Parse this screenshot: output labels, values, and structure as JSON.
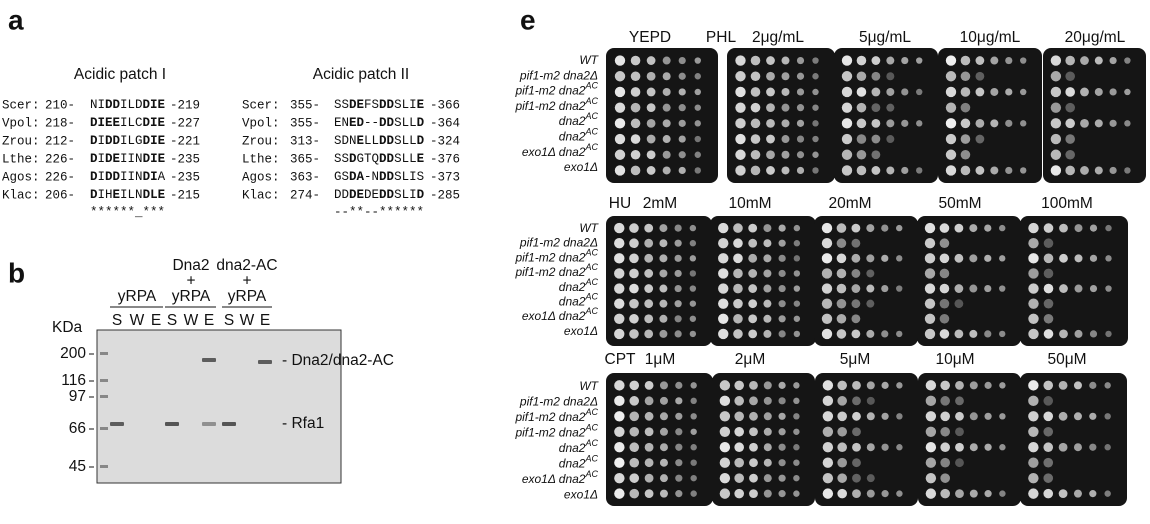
{
  "panel_a": {
    "label": "a",
    "patches": [
      {
        "title": "Acidic patch I",
        "rows": [
          {
            "species": "Scer:",
            "start": "210-",
            "seq": [
              "NI",
              "DD",
              "ILD",
              "DIE"
            ],
            "end": "-219"
          },
          {
            "species": "Vpol:",
            "start": "218-",
            "seq": [
              "",
              "DIEE",
              "ILC",
              "DIE"
            ],
            "end": "-227"
          },
          {
            "species": "Zrou:",
            "start": "212-",
            "seq": [
              "",
              "D",
              "I",
              "DD",
              "ILG",
              "DIE"
            ],
            "end": "-221"
          },
          {
            "species": "Lthe:",
            "start": "226-",
            "seq": [
              "",
              "D",
              "I",
              "DE",
              "IIN",
              "DIE"
            ],
            "end": "-235"
          },
          {
            "species": "Agos:",
            "start": "226-",
            "seq": [
              "",
              "D",
              "I",
              "DD",
              "IIN",
              "DI",
              "A"
            ],
            "end": "-235"
          },
          {
            "species": "Klac:",
            "start": "206-",
            "seq": [
              "",
              "D",
              "IH",
              "E",
              "ILN",
              "DLE"
            ],
            "end": "-215"
          }
        ],
        "consensus": "******_***"
      },
      {
        "title": "Acidic patch II",
        "rows": [
          {
            "species": "Scer:",
            "start": "355-",
            "seq": [
              "SS",
              "DE",
              "FS",
              "DD",
              "SLI",
              "E"
            ],
            "end": "-366"
          },
          {
            "species": "Vpol:",
            "start": "355-",
            "seq": [
              "EN",
              "ED",
              "--",
              "DD",
              "SLL",
              "D"
            ],
            "end": "-364"
          },
          {
            "species": "Zrou:",
            "start": "313-",
            "seq": [
              "SDN",
              "E",
              "LL",
              "DD",
              "SLL",
              "D"
            ],
            "end": "-324"
          },
          {
            "species": "Lthe:",
            "start": "365-",
            "seq": [
              "SS",
              "D",
              "GTQ",
              "DD",
              "SLL",
              "E"
            ],
            "end": "-376"
          },
          {
            "species": "Agos:",
            "start": "363-",
            "seq": [
              "GS",
              "DA",
              "-N",
              "DD",
              "SLIS"
            ],
            "end": "-373"
          },
          {
            "species": "Klac:",
            "start": "274-",
            "seq": [
              "DD",
              "DE",
              "DE",
              "DD",
              "SLI",
              "D"
            ],
            "end": "-285"
          }
        ],
        "consensus": "--**--******"
      }
    ]
  },
  "panel_b": {
    "label": "b",
    "unit": "KDa",
    "groups": [
      {
        "lines": [
          "yRPA"
        ],
        "lanes": [
          "S",
          "W",
          "E"
        ]
      },
      {
        "lines": [
          "Dna2",
          "+",
          "yRPA"
        ],
        "lanes": [
          "S",
          "W",
          "E"
        ]
      },
      {
        "lines": [
          "dna2-AC",
          "+",
          "yRPA"
        ],
        "lanes": [
          "S",
          "W",
          "E"
        ]
      }
    ],
    "markers": [
      "200",
      "116",
      "97",
      "66",
      "45"
    ],
    "band_labels": [
      "- Dna2/dna2-AC",
      "- Rfa1"
    ]
  },
  "panel_e": {
    "label": "e",
    "strains": [
      {
        "name": "WT"
      },
      {
        "name": "pif1-m2 dna2Δ"
      },
      {
        "name": "pif1-m2 dna2",
        "sup": "AC"
      },
      {
        "name": "pif1-m2 dna2",
        "sup": "AC"
      },
      {
        "name": "dna2",
        "sup": "AC"
      },
      {
        "name": "dna2",
        "sup": "AC"
      },
      {
        "name": "exo1Δ dna2",
        "sup": "AC"
      },
      {
        "name": "exo1Δ"
      }
    ],
    "blocks": [
      {
        "drug": "PHL",
        "conditions": [
          "YEPD",
          "2μg/mL",
          "5μg/mL",
          "10μg/mL",
          "20μg/mL"
        ]
      },
      {
        "drug": "HU",
        "conditions": [
          "2mM",
          "10mM",
          "20mM",
          "50mM",
          "100mM"
        ]
      },
      {
        "drug": "CPT",
        "conditions": [
          "1μM",
          "2μM",
          "5μM",
          "10μM",
          "50μM"
        ]
      }
    ]
  }
}
